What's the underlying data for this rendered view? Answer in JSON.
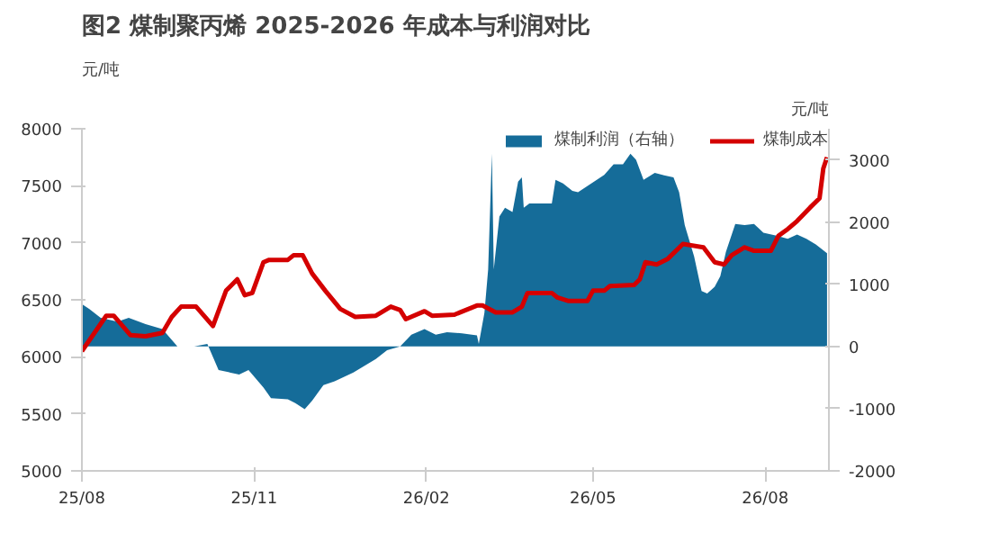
{
  "chart_data": {
    "type": "line",
    "title": "图2 煤制聚丙烯 2025-2026 年成本与利润对比",
    "ylabel": "元/吨",
    "y2label": "元/吨",
    "xlim": [
      "2025-08-01",
      "2026-09-04"
    ],
    "xticks": [
      {
        "value": "2025-08-01",
        "label": "25/08"
      },
      {
        "value": "2025-11-01",
        "label": "25/11"
      },
      {
        "value": "2026-02-01",
        "label": "26/02"
      },
      {
        "value": "2026-05-01",
        "label": "26/05"
      },
      {
        "value": "2026-08-01",
        "label": "26/08"
      }
    ],
    "ylim": [
      5000,
      8000
    ],
    "yticks": [
      5000,
      5500,
      6000,
      6500,
      7000,
      7500,
      8000
    ],
    "y2lim": [
      -2000,
      3500
    ],
    "y2ticks": [
      -2000,
      -1000,
      0,
      1000,
      2000,
      3000
    ],
    "grid": false,
    "legend": "top",
    "series": [
      {
        "name": "煤制利润（右轴）",
        "type": "area",
        "axis": "y2",
        "color": "#156c99",
        "x": [
          "2025-08-01",
          "2025-08-05",
          "2025-08-11",
          "2025-08-20",
          "2025-08-26",
          "2025-09-04",
          "2025-09-13",
          "2025-09-21",
          "2025-09-30",
          "2025-10-07",
          "2025-10-10",
          "2025-10-13",
          "2025-10-24",
          "2025-10-29",
          "2025-11-06",
          "2025-11-10",
          "2025-11-19",
          "2025-11-23",
          "2025-11-28",
          "2025-12-02",
          "2025-12-08",
          "2025-12-14",
          "2025-12-24",
          "2026-01-05",
          "2026-01-11",
          "2026-01-18",
          "2026-01-24",
          "2026-01-31",
          "2026-02-06",
          "2026-02-12",
          "2026-02-20",
          "2026-02-28",
          "2026-03-01",
          "2026-03-04",
          "2026-03-06",
          "2026-03-08",
          "2026-03-09",
          "2026-03-12",
          "2026-03-15",
          "2026-03-19",
          "2026-03-22",
          "2026-03-24",
          "2026-03-25",
          "2026-03-28",
          "2026-04-09",
          "2026-04-11",
          "2026-04-15",
          "2026-04-20",
          "2026-04-23",
          "2026-05-03",
          "2026-05-07",
          "2026-05-12",
          "2026-05-17",
          "2026-05-21",
          "2026-05-24",
          "2026-05-28",
          "2026-06-03",
          "2026-06-08",
          "2026-06-13",
          "2026-06-16",
          "2026-06-19",
          "2026-06-24",
          "2026-06-28",
          "2026-07-01",
          "2026-07-05",
          "2026-07-08",
          "2026-07-11",
          "2026-07-16",
          "2026-07-21",
          "2026-07-26",
          "2026-07-31",
          "2026-08-07",
          "2026-08-13",
          "2026-08-18",
          "2026-08-23",
          "2026-08-28",
          "2026-09-03"
        ],
        "values": [
          680,
          600,
          460,
          400,
          460,
          360,
          280,
          0,
          0,
          40,
          -170,
          -380,
          -450,
          -380,
          -660,
          -830,
          -850,
          -910,
          -1010,
          -870,
          -620,
          -560,
          -420,
          -200,
          -60,
          0,
          190,
          280,
          190,
          230,
          210,
          180,
          40,
          540,
          1240,
          3100,
          1240,
          2090,
          2230,
          2160,
          2650,
          2720,
          2230,
          2300,
          2300,
          2680,
          2620,
          2500,
          2480,
          2680,
          2760,
          2930,
          2930,
          3100,
          3000,
          2680,
          2790,
          2750,
          2720,
          2480,
          1950,
          1450,
          890,
          850,
          960,
          1130,
          1520,
          1970,
          1950,
          1970,
          1830,
          1780,
          1730,
          1800,
          1730,
          1640,
          1500
        ]
      },
      {
        "name": "煤制成本",
        "color": "#d40000",
        "x": [
          "2025-08-01",
          "2025-08-14",
          "2025-08-18",
          "2025-08-27",
          "2025-09-04",
          "2025-09-13",
          "2025-09-18",
          "2025-09-23",
          "2025-10-01",
          "2025-10-10",
          "2025-10-17",
          "2025-10-23",
          "2025-10-27",
          "2025-10-31",
          "2025-11-06",
          "2025-11-09",
          "2025-11-19",
          "2025-11-22",
          "2025-11-27",
          "2025-12-02",
          "2025-12-09",
          "2025-12-17",
          "2025-12-25",
          "2026-01-05",
          "2026-01-13",
          "2026-01-18",
          "2026-01-21",
          "2026-01-31",
          "2026-02-04",
          "2026-02-16",
          "2026-02-28",
          "2026-03-03",
          "2026-03-10",
          "2026-03-19",
          "2026-03-24",
          "2026-03-27",
          "2026-04-09",
          "2026-04-12",
          "2026-04-18",
          "2026-04-28",
          "2026-05-01",
          "2026-05-07",
          "2026-05-10",
          "2026-05-23",
          "2026-05-26",
          "2026-05-29",
          "2026-06-04",
          "2026-06-10",
          "2026-06-18",
          "2026-06-29",
          "2026-07-05",
          "2026-07-10",
          "2026-07-14",
          "2026-07-21",
          "2026-07-26",
          "2026-08-04",
          "2026-08-08",
          "2026-08-13",
          "2026-08-18",
          "2026-08-25",
          "2026-08-30",
          "2026-09-01",
          "2026-09-03"
        ],
        "values": [
          6050,
          6360,
          6360,
          6190,
          6180,
          6210,
          6350,
          6440,
          6440,
          6270,
          6580,
          6680,
          6540,
          6560,
          6830,
          6850,
          6850,
          6890,
          6890,
          6730,
          6580,
          6420,
          6350,
          6360,
          6440,
          6410,
          6330,
          6400,
          6360,
          6370,
          6450,
          6450,
          6390,
          6390,
          6440,
          6560,
          6560,
          6520,
          6490,
          6490,
          6580,
          6580,
          6620,
          6630,
          6680,
          6830,
          6810,
          6860,
          6990,
          6960,
          6830,
          6810,
          6890,
          6960,
          6930,
          6930,
          7060,
          7120,
          7190,
          7310,
          7390,
          7650,
          7750
        ]
      }
    ]
  }
}
